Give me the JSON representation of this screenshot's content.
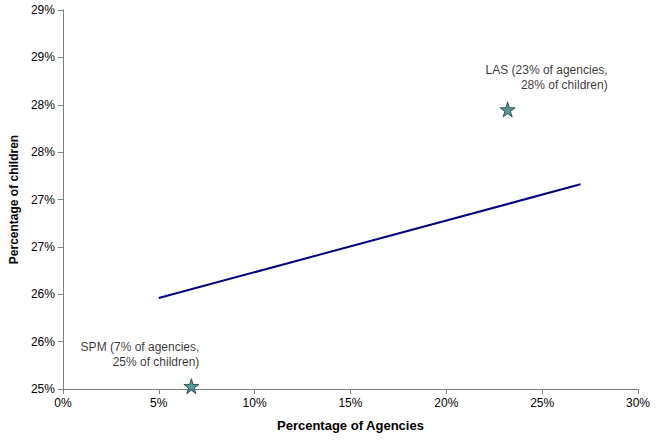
{
  "chart_data": {
    "type": "scatter",
    "x_label": "Percentage of Agencies",
    "y_label": "Percentage of children",
    "xlim": [
      0,
      30
    ],
    "xticks": [
      {
        "value": 0,
        "label": "0%"
      },
      {
        "value": 5,
        "label": "5%"
      },
      {
        "value": 10,
        "label": "10%"
      },
      {
        "value": 15,
        "label": "15%"
      },
      {
        "value": 20,
        "label": "20%"
      },
      {
        "value": 25,
        "label": "25%"
      },
      {
        "value": 30,
        "label": "30%"
      }
    ],
    "ylim": [
      25,
      29
    ],
    "yticks": [
      {
        "value": 25,
        "label": "25%"
      },
      {
        "value": 25.5,
        "label": "26%"
      },
      {
        "value": 26,
        "label": "26%"
      },
      {
        "value": 26.5,
        "label": "27%"
      },
      {
        "value": 27,
        "label": "27%"
      },
      {
        "value": 27.5,
        "label": "28%"
      },
      {
        "value": 28,
        "label": "28%"
      },
      {
        "value": 28.5,
        "label": "29%"
      },
      {
        "value": 29,
        "label": "29%"
      }
    ],
    "grid": false,
    "series": [
      {
        "type": "line",
        "color": "#000080",
        "line_style": "solid",
        "x": [
          5,
          27
        ],
        "values": [
          25.96,
          27.16
        ]
      },
      {
        "type": "scatter",
        "color": "#2e7d7d",
        "marker": "star",
        "x": [
          23.2,
          6.7
        ],
        "values": [
          27.95,
          25.03
        ],
        "labels": [
          "LAS (23% of agencies,\n28% of children)",
          "SPM (7% of agencies,\n25% of children)"
        ]
      }
    ]
  }
}
